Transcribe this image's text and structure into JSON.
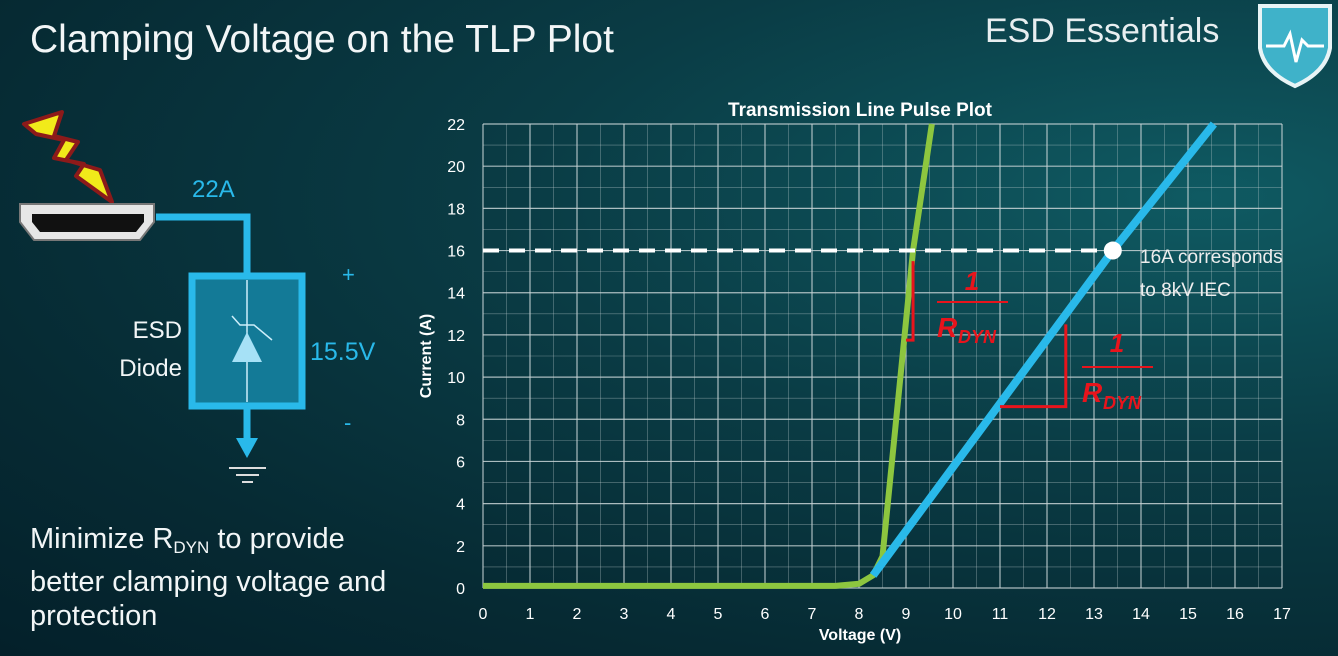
{
  "slide": {
    "title": "Clamping Voltage on the TLP Plot",
    "brand": "ESD Essentials",
    "bullet_pre": "Minimize R",
    "bullet_sub": "DYN",
    "bullet_post": " to provide better clamping voltage and protection"
  },
  "circuit": {
    "current_label": "22A",
    "voltage_label": "15.5V",
    "plus": "+",
    "minus": "-",
    "device_label_1": "ESD",
    "device_label_2": "Diode",
    "icons": [
      "lightning-icon",
      "hdmi-port-icon",
      "tvs-diode-icon",
      "ground-icon"
    ]
  },
  "colors": {
    "accent": "#29b9ea",
    "green": "#8dc63f",
    "red": "#e8141c"
  },
  "chart_data": {
    "type": "line",
    "title": "Transmission Line Pulse Plot",
    "xlabel": "Voltage (V)",
    "ylabel": "Current (A)",
    "xlim": [
      0,
      17
    ],
    "ylim": [
      0,
      22
    ],
    "xticks": [
      0,
      1,
      2,
      3,
      4,
      5,
      6,
      7,
      8,
      9,
      10,
      11,
      12,
      13,
      14,
      15,
      16,
      17
    ],
    "yticks": [
      0,
      2,
      4,
      6,
      8,
      10,
      12,
      14,
      16,
      18,
      20,
      22
    ],
    "grid": true,
    "series": [
      {
        "color": "#8dc63f",
        "points": [
          [
            0,
            0.1
          ],
          [
            7.5,
            0.1
          ],
          [
            8.0,
            0.2
          ],
          [
            8.3,
            0.6
          ],
          [
            8.5,
            1.5
          ],
          [
            9.15,
            16
          ],
          [
            9.55,
            22
          ]
        ]
      },
      {
        "color": "#29b9ea",
        "points": [
          [
            8.3,
            0.6
          ],
          [
            8.5,
            1.2
          ],
          [
            13.4,
            16
          ],
          [
            15.55,
            22
          ]
        ]
      }
    ],
    "reference_line": {
      "y": 16
    },
    "marker": {
      "x": 13.4,
      "y": 16
    },
    "annotation_1": "16A corresponds",
    "annotation_2": "to 8kV IEC",
    "slope_labels": [
      {
        "num": "1",
        "den": "R",
        "den_sub": "DYN"
      },
      {
        "num": "1",
        "den": "R",
        "den_sub": "DYN"
      }
    ]
  }
}
